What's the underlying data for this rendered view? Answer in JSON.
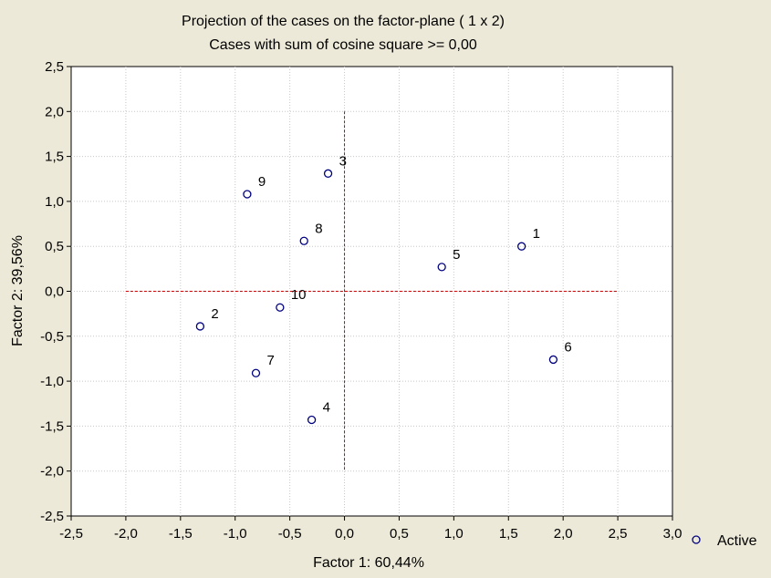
{
  "chart_data": {
    "type": "scatter",
    "title": "Projection of the cases on the factor-plane (  1 x   2)",
    "subtitle": "Cases with sum of cosine square >=  0,00",
    "xlabel": "Factor 1: 60,44%",
    "ylabel": "Factor 2: 39,56%",
    "xlim": [
      -2.5,
      3.0
    ],
    "ylim": [
      -2.5,
      2.5
    ],
    "x_ticks": [
      "-2,5",
      "-2,0",
      "-1,5",
      "-1,0",
      "-0,5",
      "0,0",
      "0,5",
      "1,0",
      "1,5",
      "2,0",
      "2,5",
      "3,0"
    ],
    "y_ticks": [
      "2,5",
      "2,0",
      "1,5",
      "1,0",
      "0,5",
      "0,0",
      "-0,5",
      "-1,0",
      "-1,5",
      "-2,0",
      "-2,5"
    ],
    "grid": true,
    "reference_lines": {
      "x": 0,
      "y": 0,
      "color": "#CC0000"
    },
    "legend": {
      "position": "bottom-right",
      "entries": [
        "Active"
      ]
    },
    "series": [
      {
        "name": "Active",
        "color": "#000080",
        "points": [
          {
            "label": "1",
            "x": 1.62,
            "y": 0.5
          },
          {
            "label": "2",
            "x": -1.32,
            "y": -0.39
          },
          {
            "label": "3",
            "x": -0.15,
            "y": 1.31
          },
          {
            "label": "4",
            "x": -0.3,
            "y": -1.43
          },
          {
            "label": "5",
            "x": 0.89,
            "y": 0.27
          },
          {
            "label": "6",
            "x": 1.91,
            "y": -0.76
          },
          {
            "label": "7",
            "x": -0.81,
            "y": -0.91
          },
          {
            "label": "8",
            "x": -0.37,
            "y": 0.56
          },
          {
            "label": "9",
            "x": -0.89,
            "y": 1.08
          },
          {
            "label": "10",
            "x": -0.59,
            "y": -0.18
          }
        ]
      }
    ]
  },
  "colors": {
    "background": "#ECE9D8",
    "plot_background": "#FFFFFF",
    "grid": "#C8C8C8",
    "marker": "#000080"
  }
}
